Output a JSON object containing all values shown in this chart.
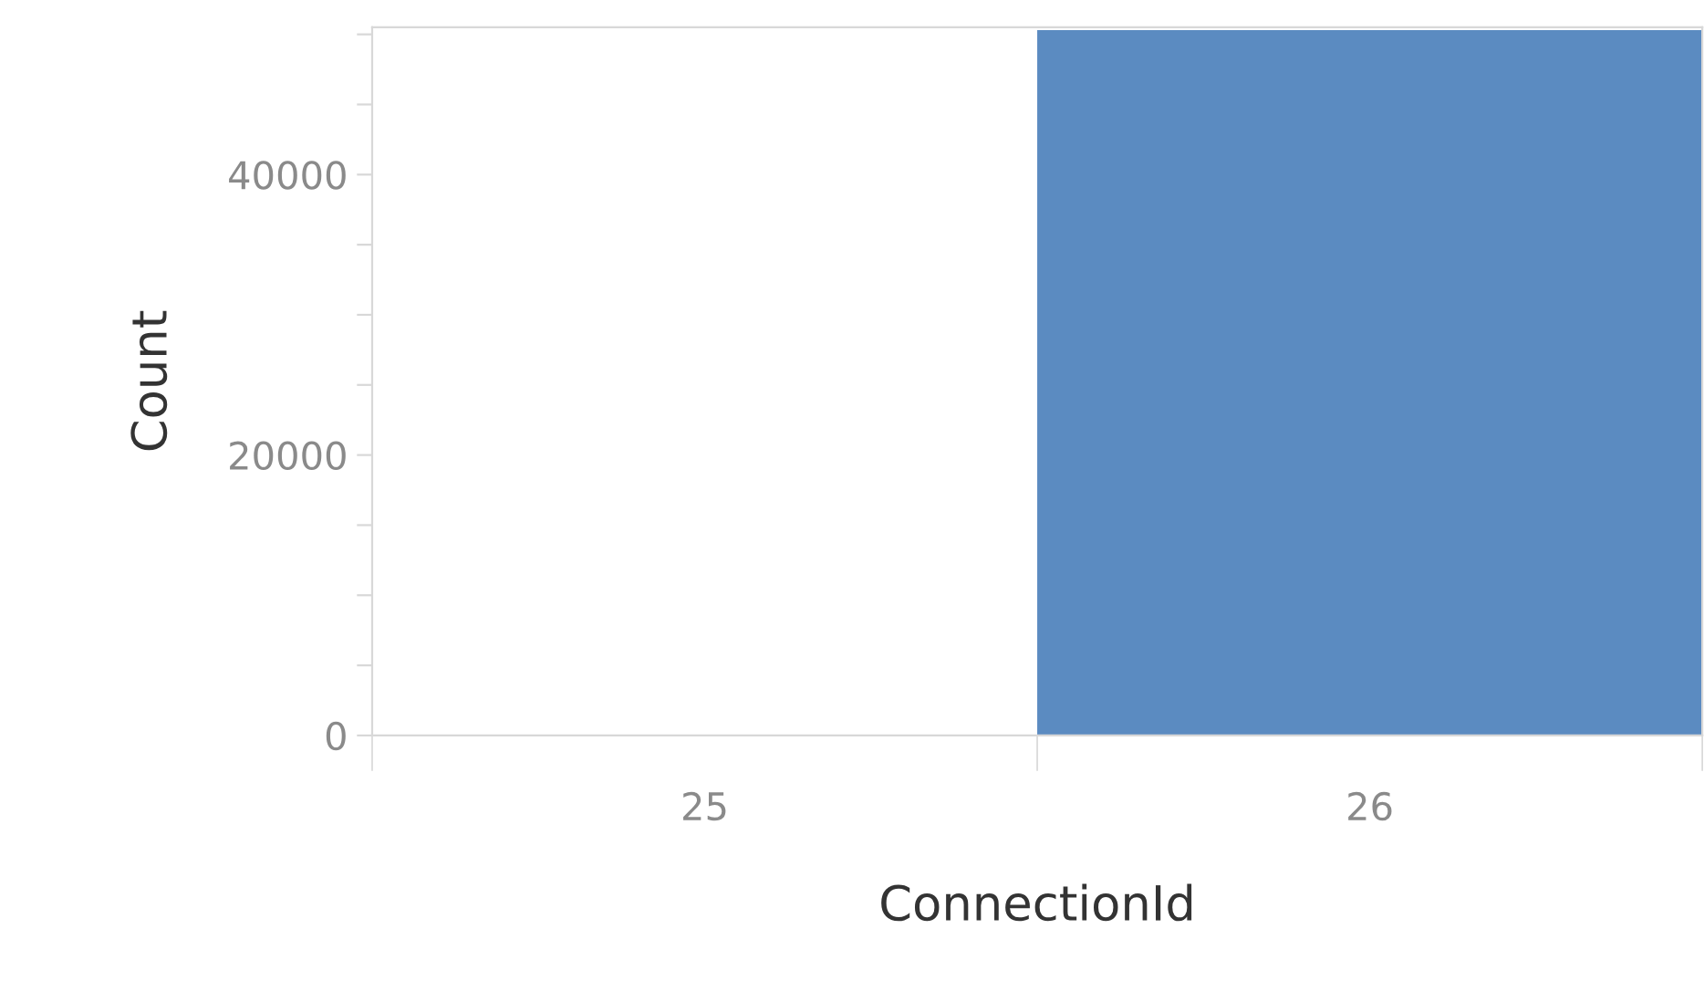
{
  "chart_data": {
    "type": "bar",
    "xlabel": "ConnectionId",
    "ylabel": "Count",
    "categories": [
      "25",
      "26"
    ],
    "values": [
      0,
      50300
    ],
    "color": "#5b8bc1",
    "ylim": [
      0,
      50500
    ],
    "yticks": [
      0,
      {
        "value": 5000,
        "label": null
      },
      {
        "value": 10000,
        "label": null
      },
      {
        "value": 15000,
        "label": null
      },
      20000,
      {
        "value": 25000,
        "label": null
      },
      {
        "value": 30000,
        "label": null
      },
      {
        "value": 35000,
        "label": null
      },
      40000,
      {
        "value": 45000,
        "label": null
      },
      {
        "value": 50000,
        "label": null
      }
    ],
    "grid": false,
    "legend": false
  }
}
